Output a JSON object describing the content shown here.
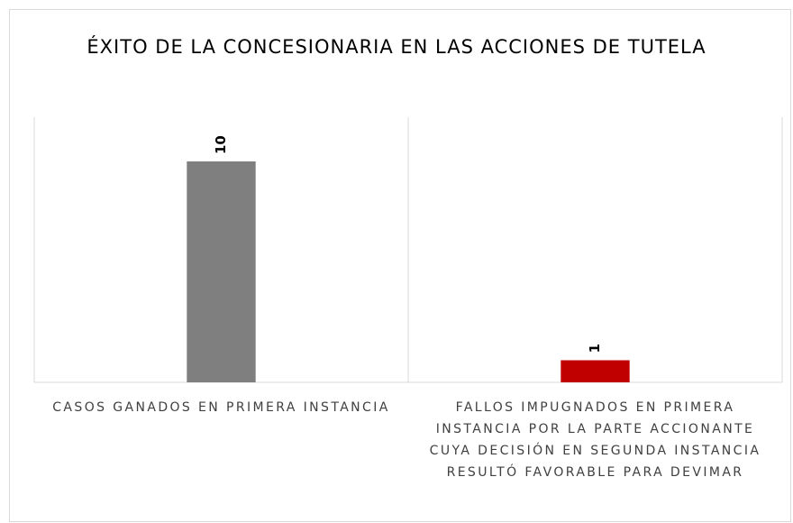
{
  "chart_data": {
    "type": "bar",
    "title": "ÉXITO DE LA CONCESIONARIA EN LAS ACCIONES DE TUTELA",
    "categories": [
      "CASOS GANADOS EN PRIMERA INSTANCIA",
      "FALLOS IMPUGNADOS EN PRIMERA INSTANCIA POR LA PARTE ACCIONANTE CUYA DECISIÓN EN SEGUNDA INSTANCIA RESULTÓ FAVORABLE PARA DEVIMAR"
    ],
    "values": [
      10,
      1
    ],
    "colors": [
      "#7f7f7f",
      "#c00000"
    ],
    "ylim": [
      0,
      12
    ]
  }
}
